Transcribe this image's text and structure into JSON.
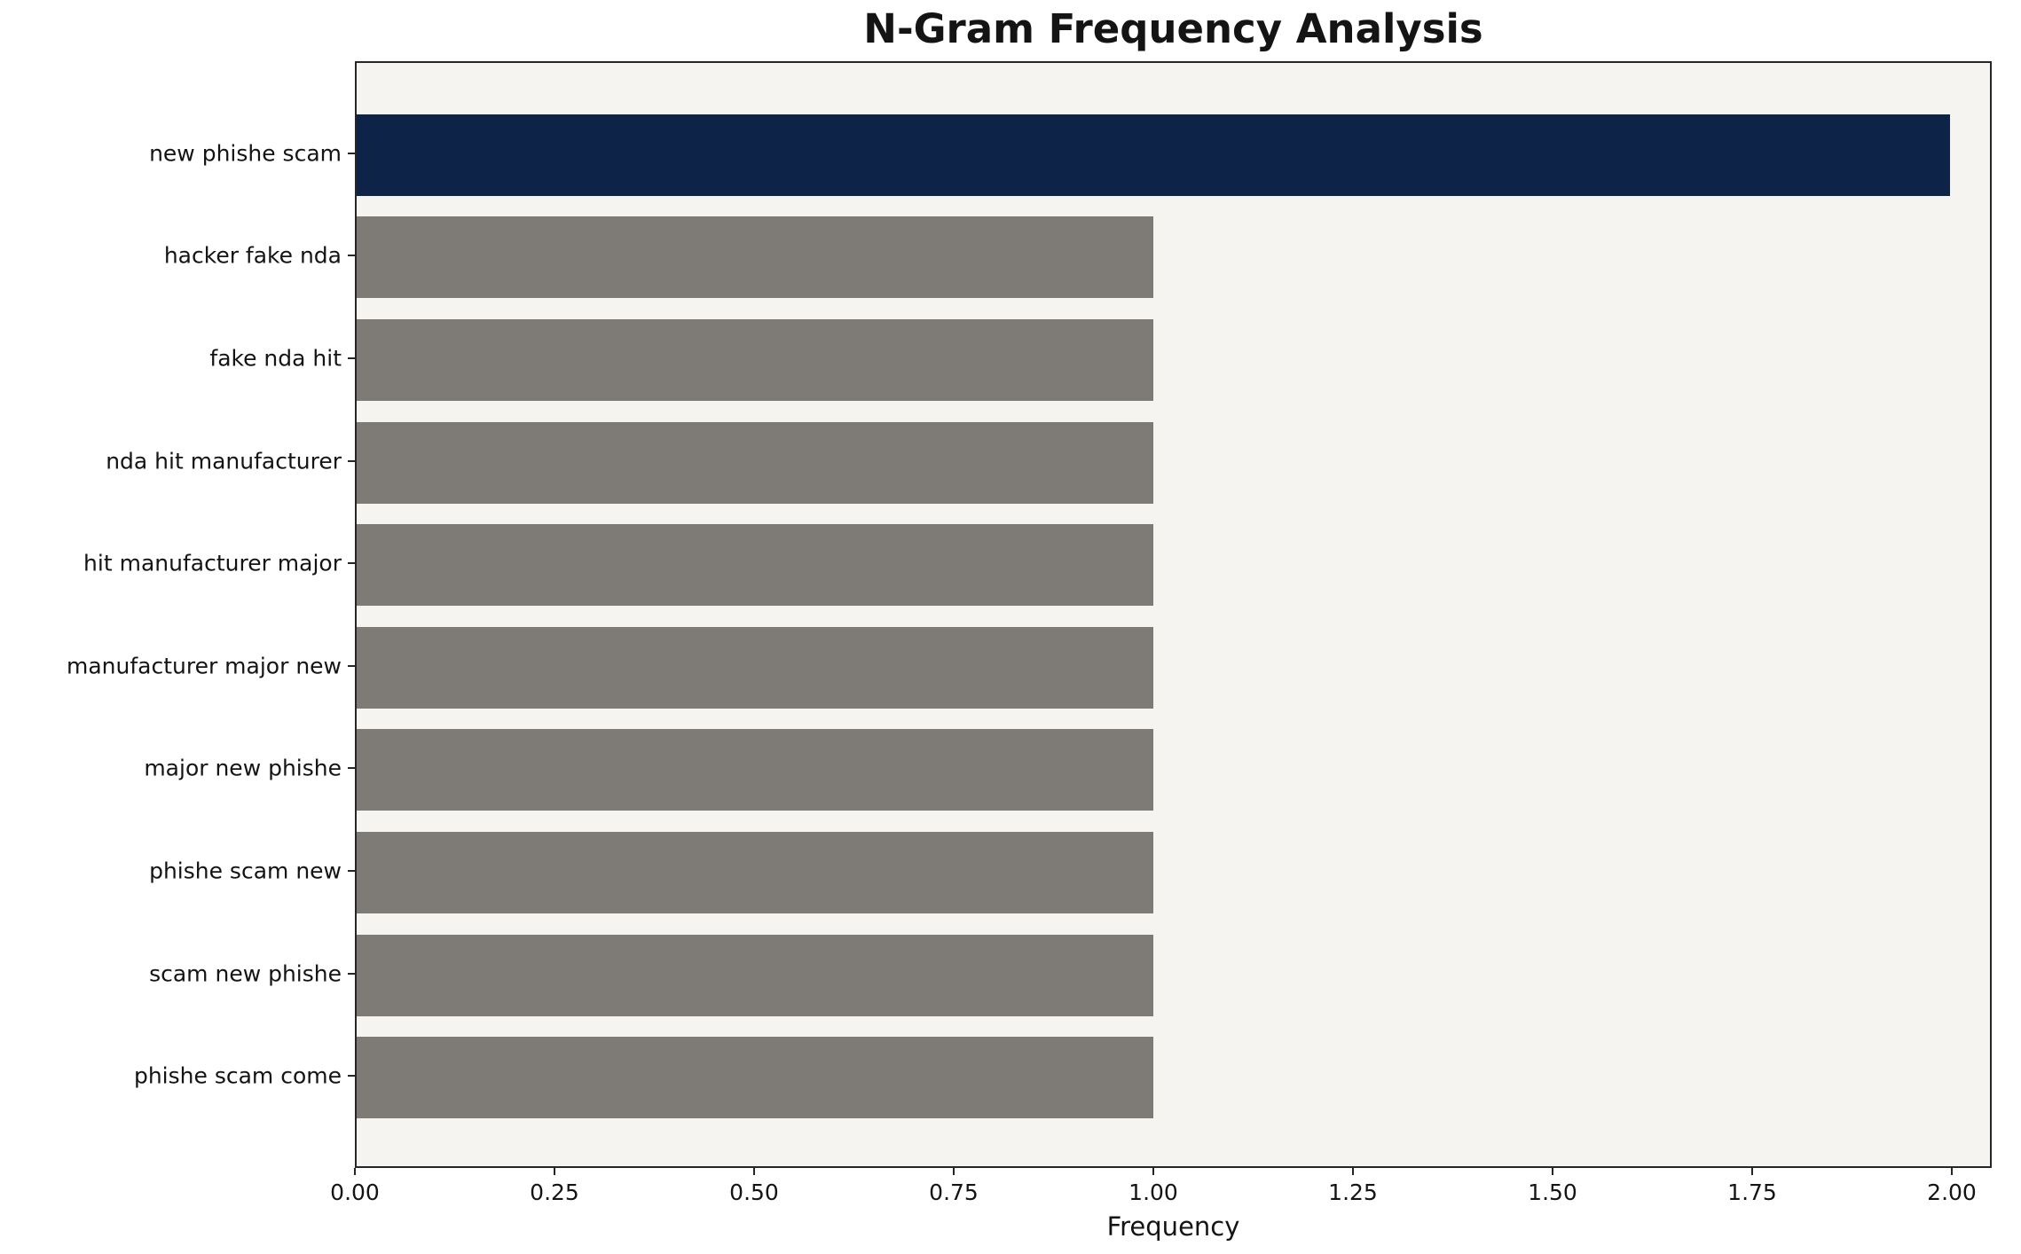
{
  "chart_data": {
    "type": "bar",
    "orientation": "horizontal",
    "title": "N-Gram Frequency Analysis",
    "xlabel": "Frequency",
    "ylabel": "",
    "categories": [
      "new phishe scam",
      "hacker fake nda",
      "fake nda hit",
      "nda hit manufacturer",
      "hit manufacturer major",
      "manufacturer major new",
      "major new phishe",
      "phishe scam new",
      "scam new phishe",
      "phishe scam come"
    ],
    "values": [
      2,
      1,
      1,
      1,
      1,
      1,
      1,
      1,
      1,
      1
    ],
    "bar_colors": [
      "#0e2348",
      "#7e7b76",
      "#7e7b76",
      "#7e7b76",
      "#7e7b76",
      "#7e7b76",
      "#7e7b76",
      "#7e7b76",
      "#7e7b76",
      "#7e7b76"
    ],
    "xlim": [
      0,
      2.05
    ],
    "xticks": [
      0,
      0.25,
      0.5,
      0.75,
      1.0,
      1.25,
      1.5,
      1.75,
      2.0
    ],
    "xtick_labels": [
      "0.00",
      "0.25",
      "0.50",
      "0.75",
      "1.00",
      "1.25",
      "1.50",
      "1.75",
      "2.00"
    ],
    "grid": false,
    "legend": "none",
    "plot_background": "#f5f4f1",
    "figure_background": "#ffffff",
    "highlight_color": "#0e2348",
    "default_bar_color": "#7e7b76"
  }
}
